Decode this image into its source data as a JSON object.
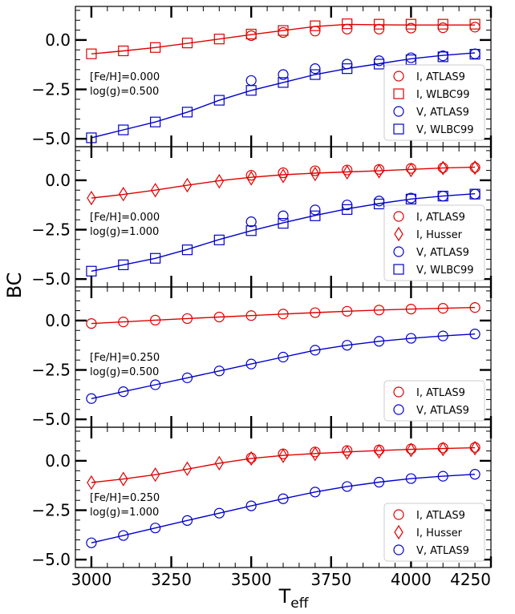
{
  "chart_data": {
    "type": "scatter",
    "xlabel_main": "T",
    "xlabel_sub": "eff",
    "ylabel": "BC",
    "xlim": [
      2950,
      4250
    ],
    "ylim": [
      -5.4,
      1.7
    ],
    "xticks": [
      3000,
      3250,
      3500,
      3750,
      4000,
      4250
    ],
    "yticks": [
      0.0,
      -2.5,
      -5.0
    ],
    "colors": {
      "I": "#e00000",
      "V": "#0000cc"
    },
    "panels": [
      {
        "annotation": [
          "[Fe/H]=0.000",
          "log(g)=0.500"
        ],
        "lines": [
          {
            "band": "I",
            "x": [
              3000,
              3100,
              3200,
              3300,
              3400,
              3500,
              3600,
              3700,
              3800,
              3900,
              4000,
              4100,
              4200
            ],
            "y": [
              -0.7,
              -0.55,
              -0.38,
              -0.17,
              0.05,
              0.27,
              0.48,
              0.68,
              0.79,
              0.77,
              0.76,
              0.76,
              0.76
            ]
          },
          {
            "band": "V",
            "x": [
              3000,
              3100,
              3200,
              3300,
              3400,
              3500,
              3600,
              3700,
              3800,
              3900,
              4000,
              4100,
              4200
            ],
            "y": [
              -4.95,
              -4.55,
              -4.15,
              -3.65,
              -3.05,
              -2.55,
              -2.15,
              -1.75,
              -1.45,
              -1.2,
              -0.95,
              -0.78,
              -0.65
            ]
          }
        ],
        "series": [
          {
            "name": "I, ATLAS9",
            "band": "I",
            "marker": "circle",
            "x": [
              3500,
              3600,
              3700,
              3800,
              3900,
              4000,
              4100,
              4200
            ],
            "y": [
              0.22,
              0.38,
              0.45,
              0.55,
              0.55,
              0.6,
              0.62,
              0.65
            ]
          },
          {
            "name": "I, WLBC99",
            "band": "I",
            "marker": "square",
            "x": [
              3000,
              3100,
              3200,
              3300,
              3400,
              3500,
              3600,
              3700,
              3800,
              3900,
              4000,
              4100,
              4200
            ],
            "y": [
              -0.7,
              -0.55,
              -0.38,
              -0.15,
              0.05,
              0.3,
              0.48,
              0.72,
              0.82,
              0.8,
              0.8,
              0.8,
              0.8
            ]
          },
          {
            "name": "V, ATLAS9",
            "band": "V",
            "marker": "circle",
            "x": [
              3500,
              3600,
              3700,
              3800,
              3900,
              4000,
              4100,
              4200
            ],
            "y": [
              -2.05,
              -1.75,
              -1.45,
              -1.22,
              -1.05,
              -0.9,
              -0.8,
              -0.7
            ]
          },
          {
            "name": "V, WLBC99",
            "band": "V",
            "marker": "square",
            "x": [
              3000,
              3100,
              3200,
              3300,
              3400,
              3500,
              3600,
              3700,
              3800,
              3900,
              4000,
              4100,
              4200
            ],
            "y": [
              -4.95,
              -4.55,
              -4.15,
              -3.65,
              -3.05,
              -2.55,
              -2.15,
              -1.75,
              -1.45,
              -1.22,
              -1.0,
              -0.85,
              -0.72
            ]
          }
        ]
      },
      {
        "annotation": [
          "[Fe/H]=0.000",
          "log(g)=1.000"
        ],
        "lines": [
          {
            "band": "I",
            "x": [
              3000,
              3100,
              3200,
              3300,
              3400,
              3500,
              3600,
              3700,
              3800,
              3900,
              4000,
              4100,
              4200
            ],
            "y": [
              -0.9,
              -0.72,
              -0.5,
              -0.25,
              -0.02,
              0.15,
              0.28,
              0.36,
              0.42,
              0.48,
              0.55,
              0.62,
              0.66
            ]
          },
          {
            "band": "V",
            "x": [
              3000,
              3100,
              3200,
              3300,
              3400,
              3500,
              3600,
              3700,
              3800,
              3900,
              4000,
              4100,
              4200
            ],
            "y": [
              -4.6,
              -4.28,
              -3.95,
              -3.5,
              -3.0,
              -2.55,
              -2.15,
              -1.78,
              -1.45,
              -1.18,
              -0.95,
              -0.8,
              -0.68
            ]
          }
        ],
        "series": [
          {
            "name": "I, ATLAS9",
            "band": "I",
            "marker": "circle",
            "x": [
              3500,
              3600,
              3700,
              3800,
              3900,
              4000,
              4100,
              4200
            ],
            "y": [
              0.25,
              0.38,
              0.48,
              0.52,
              0.55,
              0.6,
              0.63,
              0.65
            ]
          },
          {
            "name": "I, Husser",
            "band": "I",
            "marker": "diamond",
            "x": [
              3000,
              3100,
              3200,
              3300,
              3400,
              3500,
              3600,
              3700,
              3800,
              3900,
              4000,
              4100,
              4200
            ],
            "y": [
              -0.9,
              -0.7,
              -0.5,
              -0.25,
              -0.05,
              0.1,
              0.22,
              0.32,
              0.4,
              0.46,
              0.52,
              0.62,
              0.64
            ]
          },
          {
            "name": "V, ATLAS9",
            "band": "V",
            "marker": "circle",
            "x": [
              3500,
              3600,
              3700,
              3800,
              3900,
              4000,
              4100,
              4200
            ],
            "y": [
              -2.1,
              -1.8,
              -1.5,
              -1.25,
              -1.05,
              -0.9,
              -0.8,
              -0.7
            ]
          },
          {
            "name": "V, WLBC99",
            "band": "V",
            "marker": "square",
            "x": [
              3000,
              3100,
              3200,
              3300,
              3400,
              3500,
              3600,
              3700,
              3800,
              3900,
              4000,
              4100,
              4200
            ],
            "y": [
              -4.6,
              -4.28,
              -3.95,
              -3.52,
              -3.02,
              -2.55,
              -2.18,
              -1.8,
              -1.48,
              -1.2,
              -0.95,
              -0.8,
              -0.7
            ]
          }
        ]
      },
      {
        "annotation": [
          "[Fe/H]=0.250",
          "log(g)=0.500"
        ],
        "lines": [
          {
            "band": "I",
            "x": [
              3000,
              3100,
              3200,
              3300,
              3400,
              3500,
              3600,
              3700,
              3800,
              3900,
              4000,
              4100,
              4200
            ],
            "y": [
              -0.15,
              -0.07,
              0.02,
              0.1,
              0.18,
              0.25,
              0.33,
              0.4,
              0.47,
              0.53,
              0.58,
              0.62,
              0.66
            ]
          },
          {
            "band": "V",
            "x": [
              3000,
              3100,
              3200,
              3300,
              3400,
              3500,
              3600,
              3700,
              3800,
              3900,
              4000,
              4100,
              4200
            ],
            "y": [
              -3.95,
              -3.6,
              -3.25,
              -2.9,
              -2.55,
              -2.2,
              -1.85,
              -1.5,
              -1.25,
              -1.05,
              -0.9,
              -0.78,
              -0.68
            ]
          }
        ],
        "series": [
          {
            "name": "I, ATLAS9",
            "band": "I",
            "marker": "circle",
            "x": [
              3000,
              3100,
              3200,
              3300,
              3400,
              3500,
              3600,
              3700,
              3800,
              3900,
              4000,
              4100,
              4200
            ],
            "y": [
              -0.15,
              -0.07,
              0.02,
              0.1,
              0.18,
              0.25,
              0.33,
              0.4,
              0.47,
              0.53,
              0.58,
              0.62,
              0.66
            ]
          },
          {
            "name": "V, ATLAS9",
            "band": "V",
            "marker": "circle",
            "x": [
              3000,
              3100,
              3200,
              3300,
              3400,
              3500,
              3600,
              3700,
              3800,
              3900,
              4000,
              4100,
              4200
            ],
            "y": [
              -3.95,
              -3.6,
              -3.25,
              -2.9,
              -2.55,
              -2.2,
              -1.85,
              -1.5,
              -1.25,
              -1.05,
              -0.9,
              -0.78,
              -0.68
            ]
          }
        ]
      },
      {
        "annotation": [
          "[Fe/H]=0.250",
          "log(g)=1.000"
        ],
        "lines": [
          {
            "band": "I",
            "x": [
              3000,
              3100,
              3200,
              3300,
              3400,
              3500,
              3600,
              3700,
              3800,
              3900,
              4000,
              4100,
              4200
            ],
            "y": [
              -1.1,
              -0.92,
              -0.7,
              -0.42,
              -0.12,
              0.12,
              0.27,
              0.37,
              0.45,
              0.52,
              0.58,
              0.62,
              0.66
            ]
          },
          {
            "band": "V",
            "x": [
              3000,
              3100,
              3200,
              3300,
              3400,
              3500,
              3600,
              3700,
              3800,
              3900,
              4000,
              4100,
              4200
            ],
            "y": [
              -4.15,
              -3.78,
              -3.4,
              -3.02,
              -2.65,
              -2.28,
              -1.92,
              -1.58,
              -1.3,
              -1.08,
              -0.9,
              -0.78,
              -0.68
            ]
          }
        ],
        "series": [
          {
            "name": "I, ATLAS9",
            "band": "I",
            "marker": "circle",
            "x": [
              3500,
              3600,
              3700,
              3800,
              3900,
              4000,
              4100,
              4200
            ],
            "y": [
              0.15,
              0.35,
              0.45,
              0.52,
              0.55,
              0.6,
              0.65,
              0.68
            ]
          },
          {
            "name": "I, Husser",
            "band": "I",
            "marker": "diamond",
            "x": [
              3000,
              3100,
              3200,
              3300,
              3400,
              3500,
              3600,
              3700,
              3800,
              3900,
              4000,
              4100,
              4200
            ],
            "y": [
              -1.1,
              -0.92,
              -0.7,
              -0.4,
              -0.12,
              0.12,
              0.25,
              0.35,
              0.42,
              0.48,
              0.55,
              0.6,
              0.64
            ]
          },
          {
            "name": "V, ATLAS9",
            "band": "V",
            "marker": "circle",
            "x": [
              3000,
              3100,
              3200,
              3300,
              3400,
              3500,
              3600,
              3700,
              3800,
              3900,
              4000,
              4100,
              4200
            ],
            "y": [
              -4.15,
              -3.78,
              -3.4,
              -3.02,
              -2.65,
              -2.28,
              -1.92,
              -1.58,
              -1.3,
              -1.08,
              -0.9,
              -0.78,
              -0.68
            ]
          }
        ]
      }
    ]
  }
}
